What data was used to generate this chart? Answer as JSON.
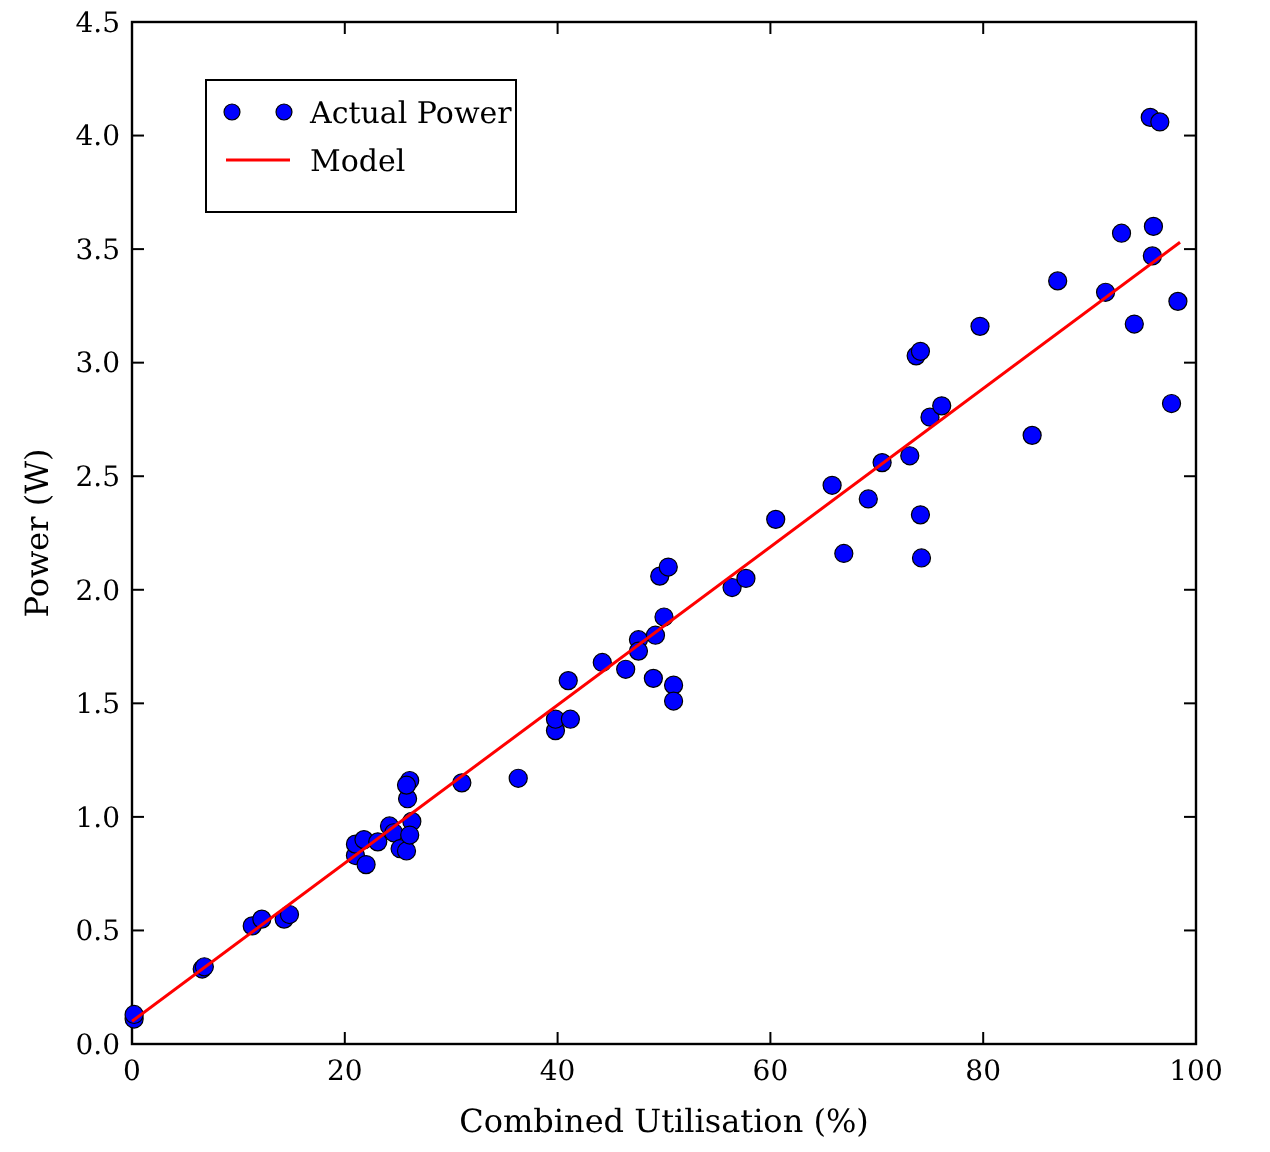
{
  "chart_data": {
    "type": "scatter",
    "xlabel": "Combined Utilisation (%)",
    "ylabel": "Power (W)",
    "xlim": [
      0,
      100
    ],
    "ylim": [
      0,
      4.5
    ],
    "xticks": [
      0,
      20,
      40,
      60,
      80,
      100
    ],
    "yticks": [
      {
        "value": 0,
        "label": "0.0"
      },
      {
        "value": 0.5,
        "label": "0.5"
      },
      {
        "value": 1,
        "label": "1.0"
      },
      {
        "value": 1.5,
        "label": "1.5"
      },
      {
        "value": 2,
        "label": "2.0"
      },
      {
        "value": 2.5,
        "label": "2.5"
      },
      {
        "value": 3,
        "label": "3.0"
      },
      {
        "value": 3.5,
        "label": "3.5"
      },
      {
        "value": 4,
        "label": "4.0"
      },
      {
        "value": 4.5,
        "label": "4.5"
      }
    ],
    "grid": false,
    "legend": "top left",
    "marker": "circle",
    "series": [
      {
        "name": "Actual Power",
        "color": "#0000ff",
        "x": [
          0.2,
          0.2,
          6.6,
          6.8,
          11.3,
          12.2,
          14.3,
          14.8,
          21,
          21,
          21.8,
          22,
          23.1,
          24.2,
          24.6,
          25.2,
          25.8,
          25.9,
          26.1,
          25.8,
          26.3,
          26.1,
          31,
          36.3,
          39.8,
          39.8,
          41,
          41.2,
          44.2,
          46.4,
          47.6,
          47.6,
          49,
          49.2,
          49.6,
          50.4,
          50,
          50.9,
          50.9,
          56.4,
          57.7,
          60.5,
          65.8,
          66.9,
          69.2,
          70.5,
          73.1,
          73.7,
          74.1,
          74.1,
          74.2,
          75,
          76.1,
          79.7,
          87,
          84.6,
          91.5,
          93,
          94.2,
          95.7,
          96.6,
          96,
          95.9,
          97.7,
          98.3
        ],
        "values": [
          0.11,
          0.13,
          0.33,
          0.34,
          0.52,
          0.55,
          0.55,
          0.57,
          0.83,
          0.88,
          0.9,
          0.79,
          0.89,
          0.96,
          0.93,
          0.86,
          0.85,
          1.08,
          1.16,
          1.14,
          0.98,
          0.92,
          1.15,
          1.17,
          1.38,
          1.43,
          1.6,
          1.43,
          1.68,
          1.65,
          1.78,
          1.73,
          1.61,
          1.8,
          2.06,
          2.1,
          1.88,
          1.58,
          1.51,
          2.01,
          2.05,
          2.31,
          2.46,
          2.16,
          2.4,
          2.56,
          2.59,
          3.03,
          3.05,
          2.33,
          2.14,
          2.76,
          2.81,
          3.16,
          3.36,
          2.68,
          3.31,
          3.57,
          3.17,
          4.08,
          4.06,
          3.6,
          3.47,
          2.82,
          3.27
        ]
      },
      {
        "name": "Model",
        "type": "line",
        "color": "#ff0000",
        "marker": "none",
        "x": [
          0,
          98.5
        ],
        "values": [
          0.1,
          3.53
        ]
      }
    ]
  }
}
